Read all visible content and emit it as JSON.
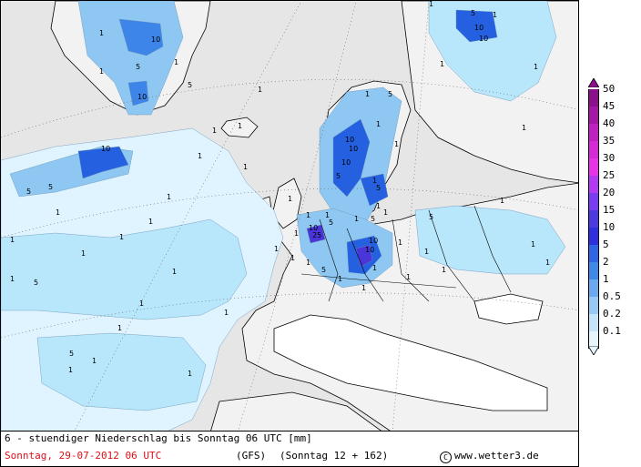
{
  "map": {
    "colors": {
      "background": "#e6e6e6",
      "land": "#f0f0f0",
      "p01": "#dff4ff",
      "p02": "#b8e6fb",
      "p05": "#8ec8f2",
      "p1": "#5fa8ea",
      "p2": "#3d85e8",
      "p5": "#2460df",
      "p10": "#4a36d8"
    },
    "contour_labels": [
      "10",
      "10",
      "5",
      "1",
      "1",
      "5",
      "10",
      "1",
      "1",
      "1",
      "5",
      "10",
      "1",
      "1",
      "1",
      "5",
      "1",
      "1",
      "5",
      "10",
      "10",
      "5",
      "1",
      "1",
      "10",
      "5",
      "1",
      "10",
      "10",
      "1",
      "1",
      "5",
      "1",
      "1",
      "5",
      "1",
      "1",
      "1",
      "1",
      "10",
      "25",
      "1",
      "5",
      "1",
      "5",
      "1",
      "10",
      "5",
      "1",
      "1",
      "5",
      "1",
      "1",
      "1",
      "1",
      "1",
      "5",
      "1",
      "1",
      "1",
      "1",
      "1",
      "1",
      "1",
      "1",
      "1",
      "1",
      "1",
      "1",
      "1",
      "1",
      "1",
      "1",
      "1",
      "1",
      "1",
      "1"
    ]
  },
  "legend": {
    "title_unit": "mm",
    "levels": [
      {
        "label": "50",
        "color": "#8c0f8c"
      },
      {
        "label": "45",
        "color": "#a518a5"
      },
      {
        "label": "40",
        "color": "#bf21c0"
      },
      {
        "label": "35",
        "color": "#d62ad8"
      },
      {
        "label": "30",
        "color": "#e633e8"
      },
      {
        "label": "25",
        "color": "#b23af0"
      },
      {
        "label": "20",
        "color": "#7a3cf2"
      },
      {
        "label": "15",
        "color": "#4a3adf"
      },
      {
        "label": "10",
        "color": "#2f2fe0"
      },
      {
        "label": "5",
        "color": "#2f66e3"
      },
      {
        "label": "2",
        "color": "#3f8ae8"
      },
      {
        "label": "1",
        "color": "#6ba9ee"
      },
      {
        "label": "0.5",
        "color": "#98c8f4"
      },
      {
        "label": "0.2",
        "color": "#c6e4f9"
      },
      {
        "label": "0.1",
        "color": "#e6f5fc"
      }
    ]
  },
  "footer": {
    "title": "6 - stuendiger Niederschlag bis Sonntag 06 UTC [mm]",
    "date": "Sonntag, 29-07-2012  06 UTC",
    "model": "(GFS)",
    "run": "(Sonntag 12 + 162)",
    "copyright_symbol": "C",
    "credit": "www.wetter3.de"
  }
}
